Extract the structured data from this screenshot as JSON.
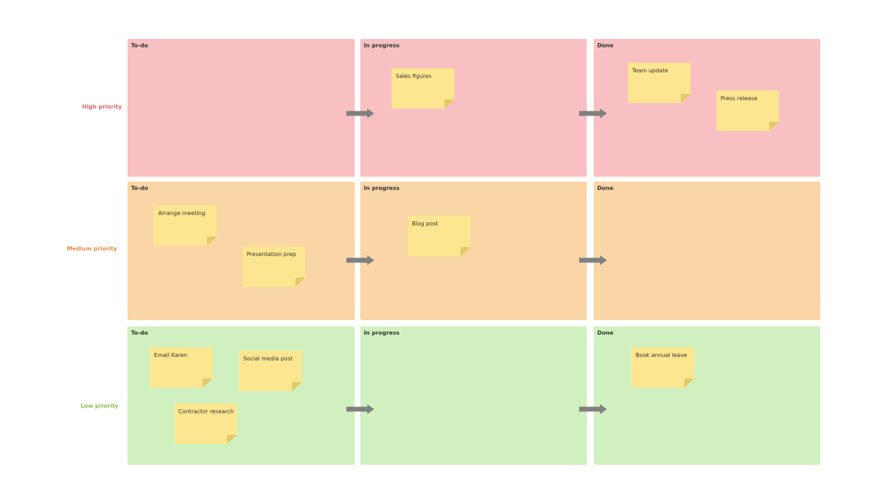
{
  "rows": [
    {
      "label": "High priority",
      "cells": [
        {
          "title": "To-do",
          "notes": []
        },
        {
          "title": "In progress",
          "notes": [
            "Sales figures"
          ]
        },
        {
          "title": "Done",
          "notes": [
            "Team update",
            "Press release"
          ]
        }
      ]
    },
    {
      "label": "Medium priority",
      "cells": [
        {
          "title": "To-do",
          "notes": [
            "Arrange meeting",
            "Presentation prep"
          ]
        },
        {
          "title": "In progress",
          "notes": [
            "Blog post"
          ]
        },
        {
          "title": "Done",
          "notes": []
        }
      ]
    },
    {
      "label": "Low priority",
      "cells": [
        {
          "title": "To-do",
          "notes": [
            "Email Karen",
            "Social media post",
            "Contractor research"
          ]
        },
        {
          "title": "In progress",
          "notes": []
        },
        {
          "title": "Done",
          "notes": [
            "Book annual leave"
          ]
        }
      ]
    }
  ]
}
